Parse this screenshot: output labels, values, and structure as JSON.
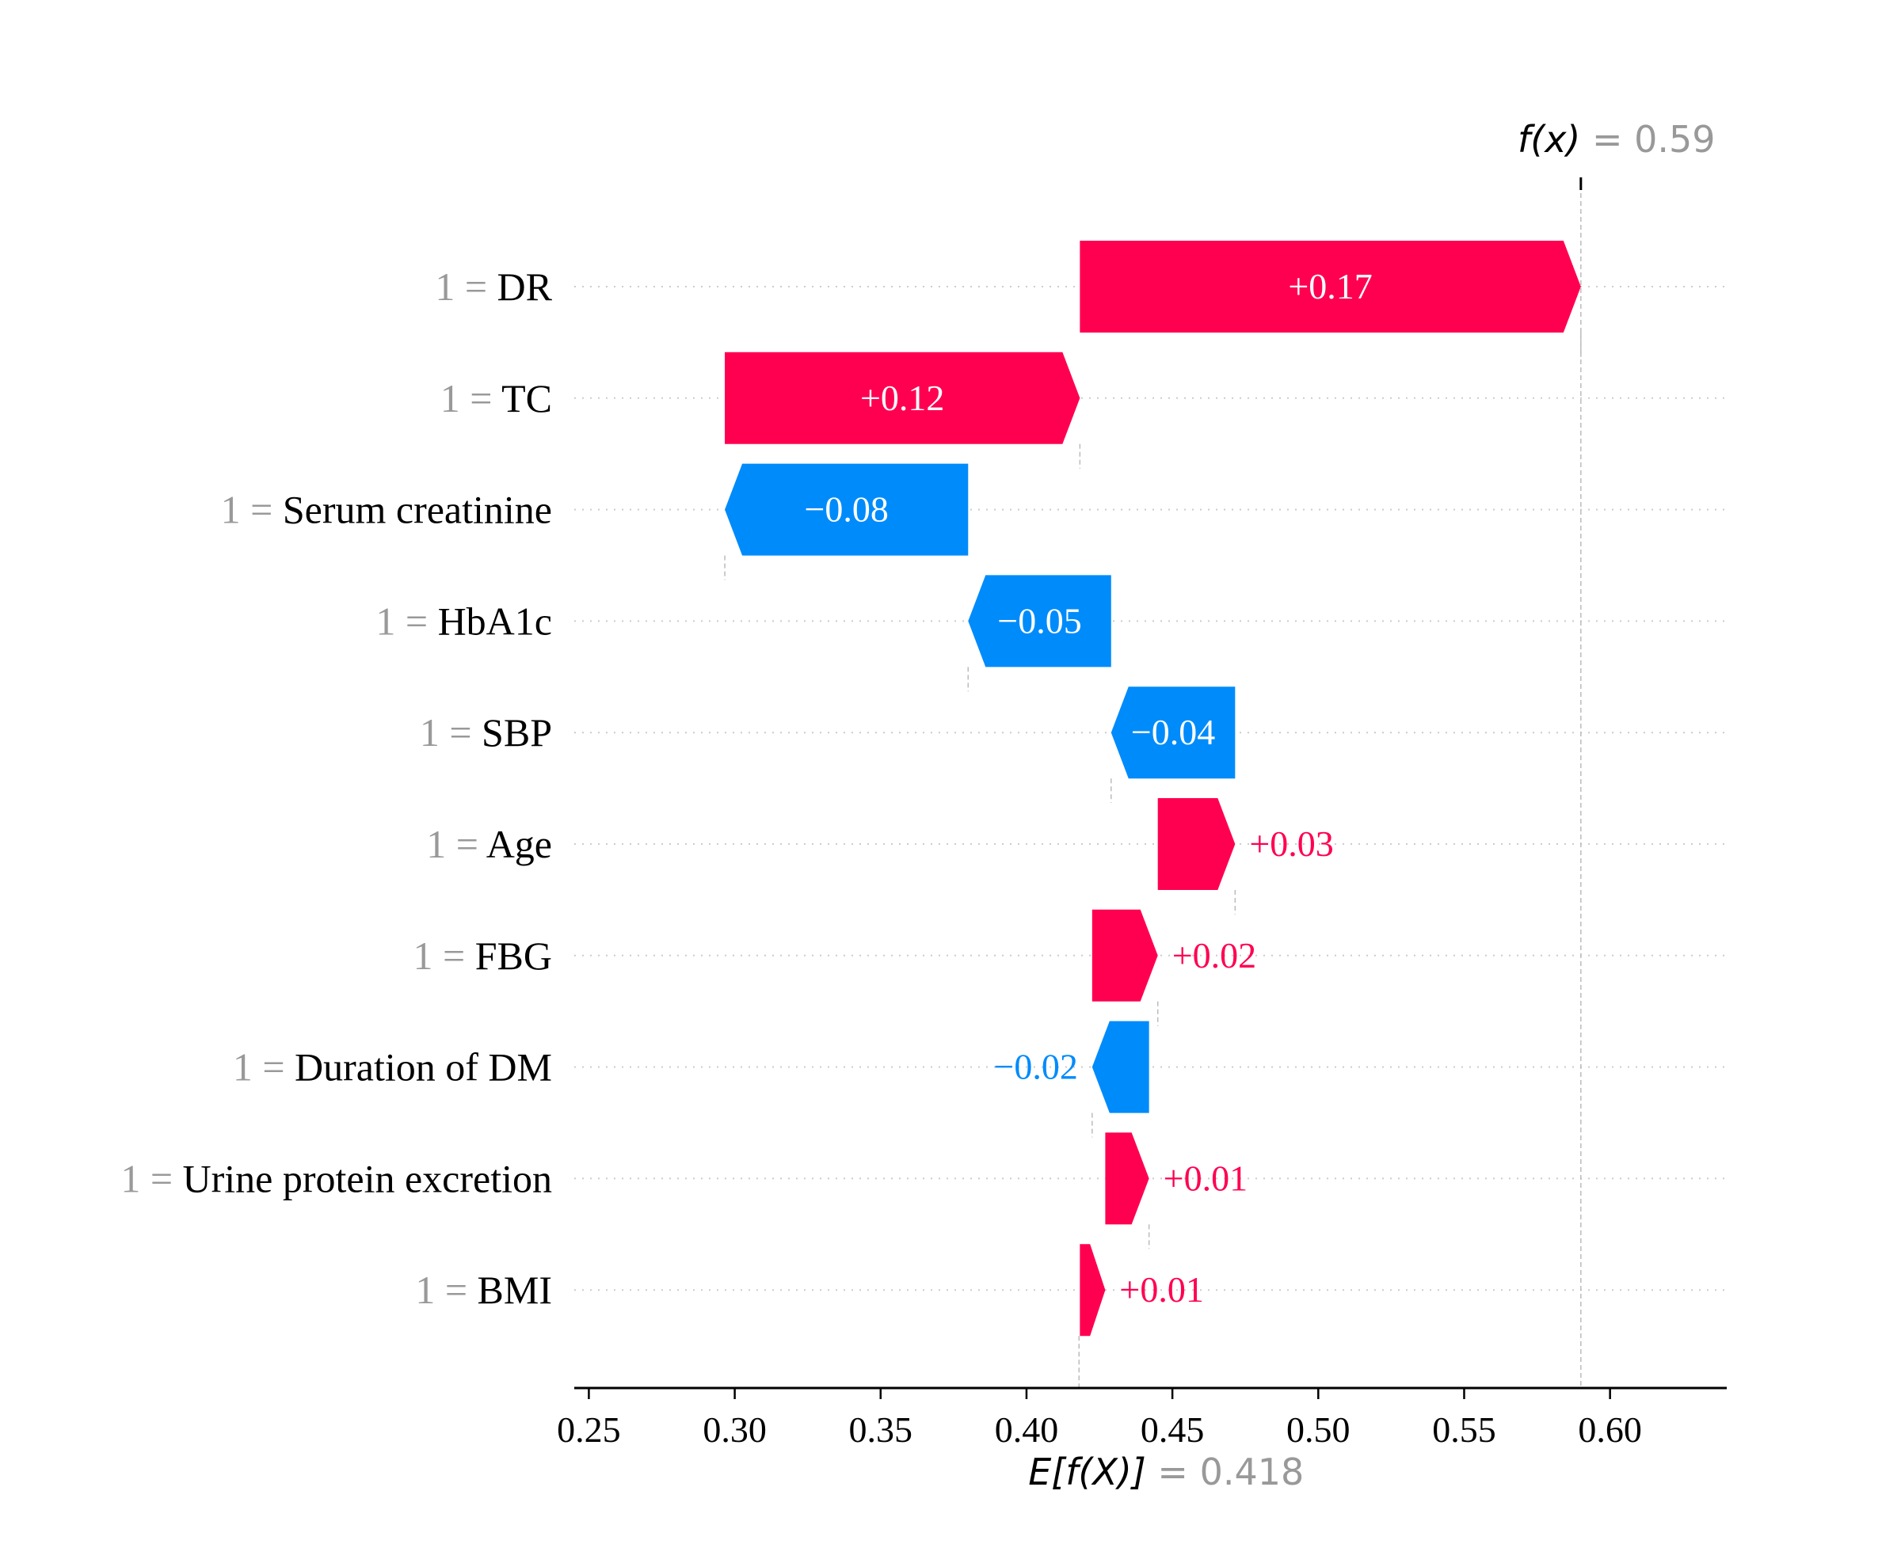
{
  "chart_data": {
    "type": "waterfall",
    "title": "",
    "xlabel": "",
    "ylabel": "",
    "xlim": [
      0.245,
      0.64
    ],
    "x_ticks": [
      0.25,
      0.3,
      0.35,
      0.4,
      0.45,
      0.5,
      0.55,
      0.6
    ],
    "x_tick_labels": [
      "0.25",
      "0.30",
      "0.35",
      "0.40",
      "0.45",
      "0.50",
      "0.55",
      "0.60"
    ],
    "base_value": 0.418,
    "output_value": 0.59,
    "base_label": {
      "symbol": "E[f(X)]",
      "equals": "=",
      "value": "0.418"
    },
    "output_label": {
      "symbol": "f(x)",
      "equals": "=",
      "value": "0.59"
    },
    "features": [
      {
        "feature_value": "1",
        "equals": "=",
        "name": "DR",
        "start": 0.4183,
        "end": 0.59,
        "label": "+0.17"
      },
      {
        "feature_value": "1",
        "equals": "=",
        "name": "TC",
        "start": 0.2966,
        "end": 0.4183,
        "label": "+0.12"
      },
      {
        "feature_value": "1",
        "equals": "=",
        "name": "Serum creatinine",
        "start": 0.38,
        "end": 0.2966,
        "label": "−0.08"
      },
      {
        "feature_value": "1",
        "equals": "=",
        "name": "HbA1c",
        "start": 0.429,
        "end": 0.38,
        "label": "−0.05"
      },
      {
        "feature_value": "1",
        "equals": "=",
        "name": "SBP",
        "start": 0.4715,
        "end": 0.429,
        "label": "−0.04"
      },
      {
        "feature_value": "1",
        "equals": "=",
        "name": "Age",
        "start": 0.445,
        "end": 0.4715,
        "label": "+0.03"
      },
      {
        "feature_value": "1",
        "equals": "=",
        "name": "FBG",
        "start": 0.4225,
        "end": 0.445,
        "label": "+0.02"
      },
      {
        "feature_value": "1",
        "equals": "=",
        "name": "Duration of DM",
        "start": 0.442,
        "end": 0.4225,
        "label": "−0.02"
      },
      {
        "feature_value": "1",
        "equals": "=",
        "name": "Urine protein excretion",
        "start": 0.427,
        "end": 0.442,
        "label": "+0.01"
      },
      {
        "feature_value": "1",
        "equals": "=",
        "name": "BMI",
        "start": 0.4183,
        "end": 0.427,
        "label": "+0.01"
      }
    ],
    "colors": {
      "positive": "#ff0051",
      "negative": "#008bfb",
      "muted": "#999999",
      "grid": "#cccccc",
      "axis": "#000000"
    },
    "grid": false
  }
}
